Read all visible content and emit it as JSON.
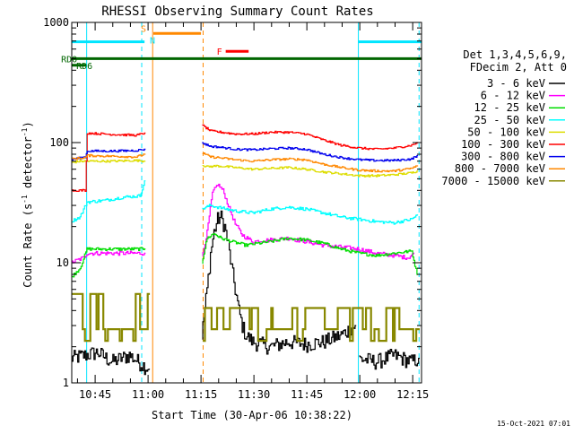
{
  "chart_data": {
    "type": "line",
    "title": "RHESSI Observing Summary Count Rates",
    "xlabel": "Start Time (30-Apr-06 10:38:22)",
    "ylabel": "Count Rate (s",
    "ylabel_sup": "-1",
    "ylabel_tail": " detector",
    "ylabel_close": ")",
    "y_scale": "log",
    "ylim": [
      1,
      1000
    ],
    "xlim": [
      38.37,
      137.5
    ],
    "x_unit": "minutes after 10:00 UT (30-Apr-06)",
    "y_ticks": [
      {
        "value": 1,
        "label": "1"
      },
      {
        "value": 10,
        "label": "10"
      },
      {
        "value": 100,
        "label": "100"
      },
      {
        "value": 1000,
        "label": "1000"
      }
    ],
    "x_ticks": [
      {
        "value": 45,
        "label": "10:45"
      },
      {
        "value": 60,
        "label": "11:00"
      },
      {
        "value": 75,
        "label": "11:15"
      },
      {
        "value": 90,
        "label": "11:30"
      },
      {
        "value": 105,
        "label": "11:45"
      },
      {
        "value": 120,
        "label": "12:00"
      },
      {
        "value": 135,
        "label": "12:15"
      }
    ],
    "legend_header": [
      "Det 1,3,4,5,6,9,",
      "FDecim 2, Att 0"
    ],
    "legend_position": "right",
    "footer": "15-Oct-2021 07:01",
    "series": [
      {
        "name": "3 - 6 keV",
        "color": "#000000",
        "segments": [
          {
            "x": [
              38.4,
              46,
              50,
              55,
              59,
              60.5
            ],
            "y": [
              1.6,
              1.8,
              1.5,
              1.7,
              1.4,
              1.3
            ],
            "noise": 0.15
          },
          {
            "x": [
              75.5,
              76,
              77,
              78,
              79,
              80,
              81,
              82,
              83,
              84,
              85,
              86,
              87,
              88,
              90,
              95,
              100,
              105,
              110,
              115,
              119
            ],
            "y": [
              2.5,
              3.5,
              6,
              12,
              18,
              23,
              24,
              20,
              14,
              9,
              6,
              4,
              3,
              2.5,
              2.2,
              2,
              2.2,
              2.1,
              2.2,
              2.5,
              3
            ],
            "noise": 0.15
          },
          {
            "x": [
              120,
              125,
              130,
              135,
              137
            ],
            "y": [
              1.6,
              1.5,
              1.7,
              1.5,
              1.6
            ],
            "noise": 0.15
          }
        ]
      },
      {
        "name": "6 - 12 keV",
        "color": "#ff00ff",
        "segments": [
          {
            "x": [
              38.4,
              42,
              43,
              50,
              57,
              59.3
            ],
            "y": [
              10,
              11,
              12,
              12,
              12,
              12
            ],
            "noise": 0.04
          },
          {
            "x": [
              75.5,
              77,
              78.5,
              80,
              81.5,
              83,
              85,
              87,
              90,
              95,
              100,
              105,
              110,
              115,
              120,
              125,
              130,
              134,
              135.5
            ],
            "y": [
              11,
              18,
              38,
              45,
              40,
              30,
              21,
              17,
              15,
              15.5,
              16,
              15,
              14,
              13.5,
              13,
              12,
              11.5,
              11,
              12
            ],
            "noise": 0.04
          }
        ]
      },
      {
        "name": "12 - 25 keV",
        "color": "#00dd00",
        "segments": [
          {
            "x": [
              38.4,
              41,
              43,
              50,
              57,
              59.3
            ],
            "y": [
              7.5,
              9,
              13,
              13,
              13,
              13
            ],
            "noise": 0.03
          },
          {
            "x": [
              75.5,
              77,
              79,
              81,
              84,
              88,
              95,
              100,
              105,
              110,
              115,
              120,
              125,
              130,
              135,
              136.5
            ],
            "y": [
              10,
              16,
              17.5,
              16,
              15,
              14,
              15,
              16,
              15.5,
              14.5,
              13,
              12,
              11.5,
              12,
              12.5,
              8
            ],
            "noise": 0.03
          }
        ]
      },
      {
        "name": "25 - 50 keV",
        "color": "#00ffff",
        "segments": [
          {
            "x": [
              38.4,
              41,
              43,
              48,
              53,
              58,
              59.3
            ],
            "y": [
              22,
              24,
              32,
              33,
              35,
              36,
              48
            ],
            "noise": 0.03
          },
          {
            "x": [
              75.5,
              78,
              80,
              85,
              90,
              95,
              100,
              105,
              110,
              115,
              120,
              125,
              130,
              135,
              136.5
            ],
            "y": [
              28,
              30,
              29,
              27,
              26,
              28,
              29,
              28,
              26,
              24,
              23,
              22,
              21.5,
              23,
              25
            ],
            "noise": 0.03
          }
        ]
      },
      {
        "name": "50 - 100 keV",
        "color": "#dddd00",
        "segments": [
          {
            "x": [
              38.4,
              41,
              43,
              50,
              57,
              59.3
            ],
            "y": [
              68,
              70,
              70,
              70,
              71,
              70
            ],
            "noise": 0.02
          },
          {
            "x": [
              75.5,
              77,
              80,
              85,
              90,
              95,
              100,
              105,
              110,
              115,
              120,
              125,
              130,
              135,
              136.5
            ],
            "y": [
              65,
              63,
              64,
              62,
              60,
              61,
              62,
              60,
              57,
              55,
              53,
              53,
              54,
              56,
              58
            ],
            "noise": 0.02
          }
        ]
      },
      {
        "name": "100 - 300 keV",
        "color": "#ff0000",
        "segments": [
          {
            "x": [
              38.4,
              42.5,
              43,
              50,
              57,
              59.3
            ],
            "y": [
              40,
              40,
              120,
              117,
              115,
              120
            ],
            "noise": 0.02
          },
          {
            "x": [
              75.5,
              78,
              80,
              85,
              90,
              95,
              100,
              105,
              110,
              115,
              120,
              125,
              130,
              135,
              136.5
            ],
            "y": [
              140,
              125,
              123,
              118,
              118,
              122,
              122,
              118,
              105,
              95,
              90,
              88,
              90,
              95,
              100
            ],
            "noise": 0.02
          }
        ]
      },
      {
        "name": "300 - 800 keV",
        "color": "#0000ee",
        "segments": [
          {
            "x": [
              38.4,
              42.5,
              43,
              50,
              57,
              59.3
            ],
            "y": [
              72,
              76,
              85,
              85,
              86,
              88
            ],
            "noise": 0.02
          },
          {
            "x": [
              75.5,
              78,
              80,
              85,
              90,
              95,
              100,
              105,
              110,
              115,
              120,
              125,
              130,
              135,
              136.5
            ],
            "y": [
              100,
              93,
              92,
              88,
              87,
              89,
              90,
              88,
              80,
              75,
              72,
              71,
              71,
              73,
              78
            ],
            "noise": 0.02
          }
        ]
      },
      {
        "name": "800 - 7000 keV",
        "color": "#ff8800",
        "segments": [
          {
            "x": [
              38.4,
              42.5,
              43,
              50,
              57,
              59.3
            ],
            "y": [
              73,
              75,
              78,
              77,
              76,
              80
            ],
            "noise": 0.02
          },
          {
            "x": [
              75.5,
              78,
              80,
              85,
              90,
              95,
              100,
              105,
              110,
              115,
              120,
              125,
              130,
              135,
              136.5
            ],
            "y": [
              82,
              76,
              75,
              72,
              70,
              72,
              73,
              72,
              66,
              62,
              59,
              58,
              58,
              61,
              64
            ],
            "noise": 0.02
          }
        ]
      },
      {
        "name": "7000 - 15000 keV",
        "color": "#888800",
        "segments": [
          {
            "x": [
              38.4,
              60.5
            ],
            "y": [
              2.8,
              5.5
            ],
            "random": true
          },
          {
            "x": [
              75.5,
              137
            ],
            "y": [
              2.8,
              4.2
            ],
            "random": true
          }
        ]
      }
    ],
    "flag_bars": [
      {
        "label": "",
        "color": "#00e5ff",
        "x": [
          38.4,
          59
        ],
        "y": 690
      },
      {
        "label": "",
        "color": "#00e5ff",
        "x": [
          119.5,
          137.5
        ],
        "y": 690
      },
      {
        "label": "S",
        "label_color": "#ff8800",
        "color": "#ff8800",
        "x": [
          61.5,
          75
        ],
        "y": 810
      },
      {
        "label": "N",
        "label_color": "#00e5ff",
        "color": "",
        "x": [
          61.5,
          61.5
        ],
        "y": 665
      },
      {
        "label": "F",
        "label_color": "#ff0000",
        "color": "#ff0000",
        "x": [
          82,
          88.5
        ],
        "y": 575
      },
      {
        "label": "RD0",
        "label_color": "#006600",
        "color": "#006600",
        "x": [
          38.4,
          137.5
        ],
        "y": 500
      },
      {
        "label": "RD6",
        "label_color": "#006600",
        "color": "#006600",
        "x": [
          38.4,
          42.5
        ],
        "y": 440
      }
    ],
    "vertical_lines": [
      {
        "x": 42.6,
        "color": "#00e5ff",
        "style": "solid"
      },
      {
        "x": 58.2,
        "color": "#00e5ff",
        "style": "dashed"
      },
      {
        "x": 61.3,
        "color": "#ff8800",
        "style": "solid"
      },
      {
        "x": 75.6,
        "color": "#ff8800",
        "style": "dashed"
      },
      {
        "x": 119.6,
        "color": "#00e5ff",
        "style": "solid"
      },
      {
        "x": 136.8,
        "color": "#00e5ff",
        "style": "dashed"
      }
    ]
  }
}
